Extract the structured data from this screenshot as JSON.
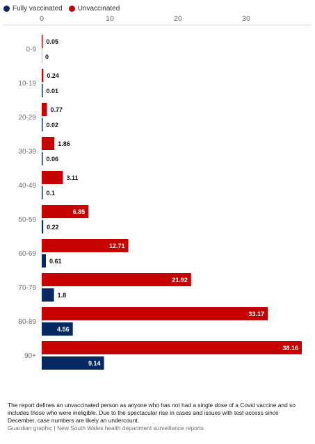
{
  "legend": {
    "fully_label": "Fully vaccinated",
    "unvax_label": "Unvaccinated"
  },
  "colors": {
    "fully": "#052962",
    "unvax": "#c70000"
  },
  "footer": {
    "note": "The report defines an unvaccinated person as anyone who has not had a single dose of a Covid vaccine and so includes those who were ineligible. Due to the spectacular rise in cases and issues with test access since December, case numbers are likely an undercount.",
    "source": "Guardian graphic | New South Wales health department surveillance reports"
  },
  "chart_data": {
    "type": "bar",
    "orientation": "horizontal",
    "categories": [
      "0-9",
      "10-19",
      "20-29",
      "30-39",
      "40-49",
      "50-59",
      "60-69",
      "70-79",
      "80-89",
      "90+"
    ],
    "series": [
      {
        "name": "Unvaccinated",
        "values": [
          0.05,
          0.24,
          0.77,
          1.86,
          3.11,
          6.85,
          12.71,
          21.92,
          33.17,
          38.16
        ]
      },
      {
        "name": "Fully vaccinated",
        "values": [
          0,
          0.01,
          0.02,
          0.06,
          0.1,
          0.22,
          0.61,
          1.8,
          4.56,
          9.14
        ]
      }
    ],
    "x_ticks": [
      0,
      10,
      20,
      30
    ],
    "xlim": [
      0,
      40
    ],
    "grid": false,
    "legend_position": "top-left"
  }
}
